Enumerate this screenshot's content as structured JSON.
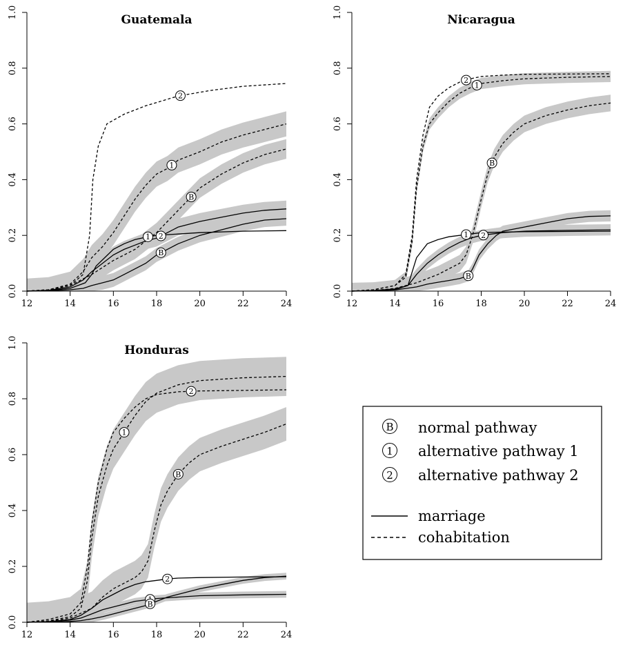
{
  "chart_data": [
    {
      "type": "line",
      "title": "Guatemala",
      "xlim": [
        12,
        24
      ],
      "ylim": [
        0,
        1
      ],
      "x_ticks": [
        "12",
        "14",
        "16",
        "18",
        "20",
        "22",
        "24"
      ],
      "y_ticks": [
        "0.0",
        "0.2",
        "0.4",
        "0.6",
        "0.8",
        "1.0"
      ],
      "series": [
        {
          "label": "2",
          "style": "cohabitation",
          "band": false,
          "marker_at": 19.1,
          "x": [
            12,
            13,
            14,
            14.6,
            14.9,
            15.05,
            15.3,
            15.7,
            16.5,
            17.5,
            19,
            20.5,
            22,
            24
          ],
          "y": [
            0,
            0.005,
            0.02,
            0.06,
            0.2,
            0.4,
            0.52,
            0.6,
            0.635,
            0.665,
            0.7,
            0.72,
            0.735,
            0.745
          ]
        },
        {
          "label": "1",
          "style": "cohabitation",
          "band": true,
          "band_width": 0.045,
          "marker_at": 18.7,
          "x": [
            12,
            13,
            14,
            14.6,
            15,
            15.5,
            16,
            16.5,
            17,
            17.5,
            18,
            18.5,
            19,
            20,
            21,
            22,
            23,
            24
          ],
          "y": [
            0,
            0.005,
            0.025,
            0.07,
            0.12,
            0.16,
            0.21,
            0.27,
            0.33,
            0.38,
            0.42,
            0.44,
            0.47,
            0.5,
            0.535,
            0.56,
            0.58,
            0.6
          ]
        },
        {
          "label": "B",
          "style": "cohabitation",
          "band": true,
          "band_width": 0.035,
          "marker_at": 19.6,
          "x": [
            12,
            13,
            14,
            15,
            16,
            17,
            17.5,
            18,
            18.5,
            19,
            19.5,
            20,
            21,
            22,
            23,
            24
          ],
          "y": [
            0,
            0.005,
            0.02,
            0.06,
            0.11,
            0.15,
            0.18,
            0.21,
            0.25,
            0.29,
            0.33,
            0.37,
            0.42,
            0.46,
            0.49,
            0.51
          ]
        },
        {
          "label": "1",
          "style": "marriage",
          "band": false,
          "marker_at": 17.6,
          "x": [
            12,
            13,
            14,
            14.7,
            15,
            15.2,
            15.6,
            16,
            16.5,
            17,
            17.6,
            18,
            19,
            20,
            22,
            24
          ],
          "y": [
            0,
            0.002,
            0.01,
            0.03,
            0.06,
            0.09,
            0.12,
            0.15,
            0.17,
            0.185,
            0.195,
            0.2,
            0.205,
            0.21,
            0.215,
            0.217
          ]
        },
        {
          "label": "2",
          "style": "marriage",
          "band": true,
          "band_width": 0.03,
          "marker_at": 18.2,
          "x": [
            12,
            13,
            14,
            14.6,
            15,
            15.5,
            16,
            16.5,
            17,
            17.5,
            18,
            18.5,
            19,
            20,
            21,
            22,
            23,
            24
          ],
          "y": [
            0,
            0.003,
            0.015,
            0.04,
            0.07,
            0.1,
            0.13,
            0.15,
            0.165,
            0.18,
            0.19,
            0.21,
            0.23,
            0.25,
            0.265,
            0.28,
            0.29,
            0.295
          ]
        },
        {
          "label": "B",
          "style": "marriage",
          "band": true,
          "band_width": 0.025,
          "marker_at": 18.2,
          "x": [
            12,
            13,
            14,
            14.6,
            15,
            15.5,
            16,
            16.5,
            17,
            17.5,
            18,
            18.5,
            19,
            20,
            21,
            22,
            23,
            24
          ],
          "y": [
            0,
            0.001,
            0.005,
            0.01,
            0.02,
            0.03,
            0.04,
            0.06,
            0.08,
            0.1,
            0.13,
            0.15,
            0.17,
            0.2,
            0.22,
            0.24,
            0.255,
            0.26
          ]
        }
      ]
    },
    {
      "type": "line",
      "title": "Nicaragua",
      "xlim": [
        12,
        24
      ],
      "ylim": [
        0,
        1
      ],
      "x_ticks": [
        "12",
        "14",
        "16",
        "18",
        "20",
        "22",
        "24"
      ],
      "y_ticks": [
        "0.0",
        "0.2",
        "0.4",
        "0.6",
        "0.8",
        "1.0"
      ],
      "series": [
        {
          "label": "2",
          "style": "cohabitation",
          "band": false,
          "marker_at": 17.3,
          "x": [
            12,
            13,
            14,
            14.5,
            14.8,
            15,
            15.3,
            15.6,
            16,
            16.5,
            17,
            17.5,
            18,
            19,
            20,
            22,
            24
          ],
          "y": [
            0,
            0.005,
            0.02,
            0.06,
            0.2,
            0.4,
            0.56,
            0.66,
            0.7,
            0.73,
            0.75,
            0.762,
            0.77,
            0.775,
            0.778,
            0.779,
            0.78
          ]
        },
        {
          "label": "1",
          "style": "cohabitation",
          "band": true,
          "band_width": 0.02,
          "marker_at": 17.8,
          "x": [
            12,
            13,
            14,
            14.5,
            14.8,
            15,
            15.3,
            15.6,
            16,
            16.5,
            17,
            17.5,
            18,
            19,
            20,
            22,
            24
          ],
          "y": [
            0,
            0.005,
            0.02,
            0.05,
            0.18,
            0.37,
            0.52,
            0.6,
            0.64,
            0.68,
            0.71,
            0.73,
            0.745,
            0.755,
            0.762,
            0.767,
            0.77
          ]
        },
        {
          "label": "B",
          "style": "cohabitation",
          "band": true,
          "band_width": 0.03,
          "marker_at": 18.5,
          "x": [
            12,
            13,
            14,
            15,
            16,
            16.5,
            17,
            17.3,
            17.6,
            18,
            18.3,
            18.6,
            19,
            19.5,
            20,
            21,
            22,
            23,
            24
          ],
          "y": [
            0,
            0.002,
            0.01,
            0.03,
            0.06,
            0.08,
            0.1,
            0.13,
            0.2,
            0.33,
            0.42,
            0.48,
            0.53,
            0.57,
            0.6,
            0.63,
            0.65,
            0.665,
            0.675
          ]
        },
        {
          "label": "1",
          "style": "marriage",
          "band": false,
          "marker_at": 17.3,
          "x": [
            12,
            13,
            14,
            14.6,
            15,
            15.5,
            16,
            16.5,
            17,
            17.5,
            18,
            19,
            20,
            22,
            24
          ],
          "y": [
            0,
            0.002,
            0.005,
            0.02,
            0.12,
            0.17,
            0.185,
            0.195,
            0.2,
            0.205,
            0.21,
            0.212,
            0.213,
            0.214,
            0.215
          ]
        },
        {
          "label": "2",
          "style": "marriage",
          "band": true,
          "band_width": 0.02,
          "marker_at": 18.1,
          "x": [
            12,
            13,
            14,
            14.6,
            15,
            15.5,
            16,
            16.5,
            17,
            17.5,
            18,
            19,
            20,
            22,
            24
          ],
          "y": [
            0,
            0.002,
            0.008,
            0.02,
            0.06,
            0.1,
            0.13,
            0.155,
            0.175,
            0.19,
            0.2,
            0.21,
            0.215,
            0.218,
            0.22
          ]
        },
        {
          "label": "B",
          "style": "marriage",
          "band": true,
          "band_width": 0.02,
          "marker_at": 17.4,
          "x": [
            12,
            13,
            14,
            15,
            15.5,
            16,
            16.5,
            17,
            17.4,
            17.6,
            17.9,
            18.3,
            18.7,
            19,
            20,
            21,
            22,
            23,
            24
          ],
          "y": [
            0,
            0.001,
            0.004,
            0.015,
            0.025,
            0.032,
            0.038,
            0.045,
            0.055,
            0.08,
            0.13,
            0.17,
            0.2,
            0.215,
            0.23,
            0.245,
            0.26,
            0.268,
            0.27
          ]
        }
      ]
    },
    {
      "type": "line",
      "title": "Honduras",
      "xlim": [
        12,
        24
      ],
      "ylim": [
        0,
        1
      ],
      "x_ticks": [
        "12",
        "14",
        "16",
        "18",
        "20",
        "22",
        "24"
      ],
      "y_ticks": [
        "0.0",
        "0.2",
        "0.4",
        "0.6",
        "0.8",
        "1.0"
      ],
      "series": [
        {
          "label": "2",
          "style": "cohabitation",
          "band": false,
          "marker_at": 19.6,
          "x": [
            12,
            13,
            14,
            14.5,
            14.8,
            15,
            15.3,
            15.7,
            16,
            16.5,
            17,
            17.5,
            18,
            19,
            20,
            22,
            24
          ],
          "y": [
            0,
            0.01,
            0.03,
            0.07,
            0.2,
            0.35,
            0.5,
            0.62,
            0.68,
            0.73,
            0.77,
            0.8,
            0.815,
            0.825,
            0.828,
            0.83,
            0.832
          ]
        },
        {
          "label": "1",
          "style": "cohabitation",
          "band": true,
          "band_width": 0.07,
          "marker_at": 16.5,
          "x": [
            12,
            13,
            14,
            14.5,
            14.8,
            15,
            15.3,
            15.7,
            16,
            16.5,
            17,
            17.5,
            18,
            19,
            20,
            22,
            24
          ],
          "y": [
            0,
            0.005,
            0.02,
            0.05,
            0.15,
            0.3,
            0.45,
            0.56,
            0.62,
            0.68,
            0.74,
            0.79,
            0.82,
            0.85,
            0.865,
            0.875,
            0.88
          ]
        },
        {
          "label": "B",
          "style": "cohabitation",
          "band": true,
          "band_width": 0.06,
          "marker_at": 19.0,
          "x": [
            12,
            13,
            14,
            15,
            15.5,
            16,
            16.5,
            17,
            17.3,
            17.6,
            17.9,
            18.2,
            18.5,
            19,
            19.5,
            20,
            21,
            22,
            23,
            24
          ],
          "y": [
            0,
            0.003,
            0.015,
            0.05,
            0.09,
            0.12,
            0.14,
            0.16,
            0.18,
            0.22,
            0.33,
            0.42,
            0.47,
            0.53,
            0.57,
            0.6,
            0.63,
            0.655,
            0.68,
            0.71
          ]
        },
        {
          "label": "2",
          "style": "marriage",
          "band": false,
          "marker_at": 18.5,
          "x": [
            12,
            13,
            14,
            14.5,
            15,
            15.5,
            16,
            16.5,
            17,
            17.5,
            18,
            18.5,
            19,
            20,
            22,
            24
          ],
          "y": [
            0,
            0.002,
            0.01,
            0.025,
            0.05,
            0.08,
            0.1,
            0.12,
            0.135,
            0.145,
            0.15,
            0.155,
            0.158,
            0.16,
            0.162,
            0.163
          ]
        },
        {
          "label": "1",
          "style": "marriage",
          "band": true,
          "band_width": 0.012,
          "marker_at": 17.7,
          "x": [
            12,
            13,
            14,
            14.5,
            15,
            15.5,
            16,
            16.5,
            17,
            17.5,
            18,
            19,
            20,
            22,
            24
          ],
          "y": [
            0,
            0.002,
            0.008,
            0.015,
            0.03,
            0.045,
            0.055,
            0.065,
            0.075,
            0.08,
            0.085,
            0.09,
            0.095,
            0.098,
            0.1
          ]
        },
        {
          "label": "B",
          "style": "marriage",
          "band": true,
          "band_width": 0.012,
          "marker_at": 17.7,
          "x": [
            12,
            13,
            14,
            14.5,
            15,
            15.5,
            16,
            16.5,
            17,
            17.5,
            18,
            18.5,
            19,
            20,
            21,
            22,
            23,
            24
          ],
          "y": [
            0,
            0.001,
            0.003,
            0.006,
            0.012,
            0.02,
            0.03,
            0.04,
            0.05,
            0.06,
            0.075,
            0.09,
            0.1,
            0.12,
            0.135,
            0.15,
            0.16,
            0.165
          ]
        }
      ]
    }
  ],
  "legend": {
    "markers": [
      {
        "symbol": "B",
        "label": "normal pathway"
      },
      {
        "symbol": "1",
        "label": "alternative pathway 1"
      },
      {
        "symbol": "2",
        "label": "alternative pathway 2"
      }
    ],
    "lines": [
      {
        "style": "marriage",
        "label": "marriage"
      },
      {
        "style": "cohabitation",
        "label": "cohabitation"
      }
    ]
  },
  "colors": {
    "line": "#000000",
    "band": "#c8c8c8",
    "background": "#ffffff"
  }
}
